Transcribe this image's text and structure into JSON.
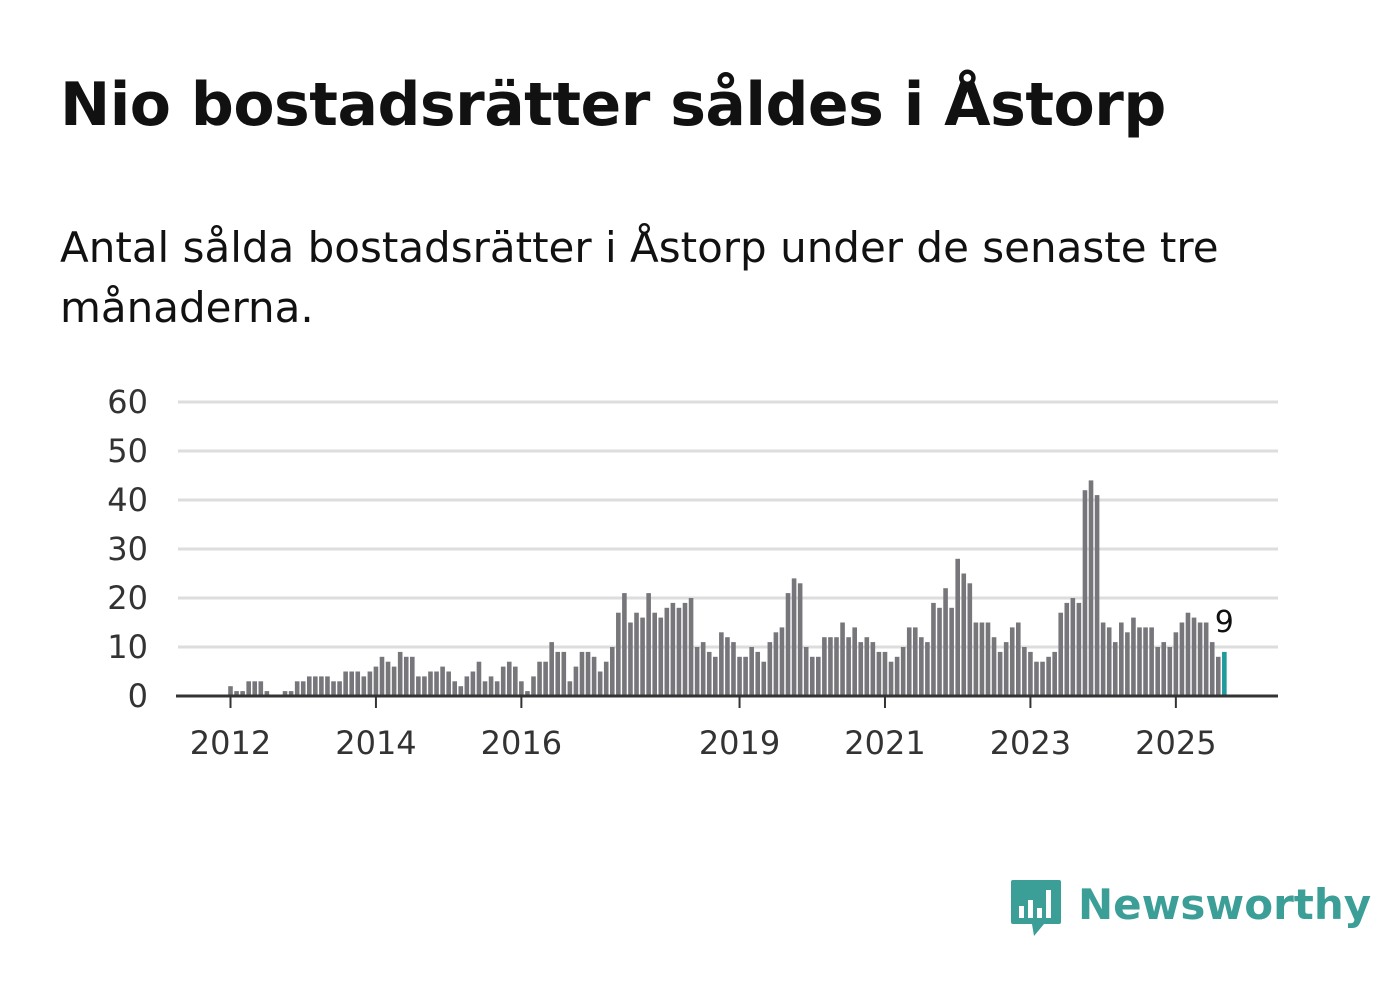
{
  "title": "Nio bostadsrätter såldes i Åstorp",
  "subtitle": "Antal sålda bostadsrätter i Åstorp under de senaste tre månaderna.",
  "brand": {
    "name": "Newsworthy",
    "color": "#3b9e97"
  },
  "colors": {
    "bar": "#77767b",
    "highlight": "#1f9b9b",
    "grid": "#dddddd",
    "axis": "#333333"
  },
  "chart_data": {
    "type": "bar",
    "title": "Nio bostadsrätter såldes i Åstorp",
    "xlabel": "",
    "ylabel": "",
    "ylim": [
      0,
      60
    ],
    "yticks": [
      0,
      10,
      20,
      30,
      40,
      50,
      60
    ],
    "xtick_labels": [
      {
        "label": "2012",
        "index": 0
      },
      {
        "label": "2014",
        "index": 24
      },
      {
        "label": "2016",
        "index": 48
      },
      {
        "label": "2019",
        "index": 84
      },
      {
        "label": "2021",
        "index": 108
      },
      {
        "label": "2023",
        "index": 132
      },
      {
        "label": "2025",
        "index": 156
      }
    ],
    "start_index_offset": 0,
    "values": [
      2,
      1,
      1,
      3,
      3,
      3,
      1,
      0,
      0,
      1,
      1,
      3,
      3,
      4,
      4,
      4,
      4,
      3,
      3,
      5,
      5,
      5,
      4,
      5,
      6,
      8,
      7,
      6,
      9,
      8,
      8,
      4,
      4,
      5,
      5,
      6,
      5,
      3,
      2,
      4,
      5,
      7,
      3,
      4,
      3,
      6,
      7,
      6,
      3,
      1,
      4,
      7,
      7,
      11,
      9,
      9,
      3,
      6,
      9,
      9,
      8,
      5,
      7,
      10,
      17,
      21,
      15,
      17,
      16,
      21,
      17,
      16,
      18,
      19,
      18,
      19,
      20,
      10,
      11,
      9,
      8,
      13,
      12,
      11,
      8,
      8,
      10,
      9,
      7,
      11,
      13,
      14,
      21,
      24,
      23,
      10,
      8,
      8,
      12,
      12,
      12,
      15,
      12,
      14,
      11,
      12,
      11,
      9,
      9,
      7,
      8,
      10,
      14,
      14,
      12,
      11,
      19,
      18,
      22,
      18,
      28,
      25,
      23,
      15,
      15,
      15,
      12,
      9,
      11,
      14,
      15,
      10,
      9,
      7,
      7,
      8,
      9,
      17,
      19,
      20,
      19,
      42,
      44,
      41,
      15,
      14,
      11,
      15,
      13,
      16,
      14,
      14,
      14,
      10,
      11,
      10,
      13,
      15,
      17,
      16,
      15,
      15,
      11,
      8,
      9
    ],
    "highlight_last": true,
    "annotations": [
      {
        "text": "9",
        "target": "last"
      }
    ]
  }
}
